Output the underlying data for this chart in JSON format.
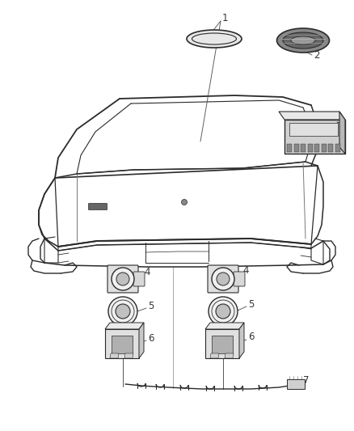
{
  "bg_color": "#ffffff",
  "line_color": "#2a2a2a",
  "label_color": "#333333",
  "fig_width": 4.38,
  "fig_height": 5.33,
  "dpi": 100
}
